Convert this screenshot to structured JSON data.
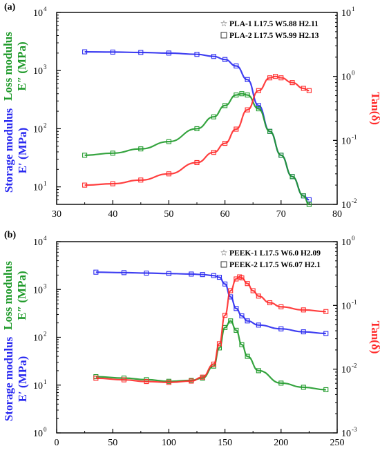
{
  "colors": {
    "storage": "#2a2af0",
    "loss": "#1f9a2a",
    "tan": "#ff2a2a",
    "axis": "#000000"
  },
  "shared_labels": {
    "loss_line1": "Loss modulus",
    "loss_line2": "E″ (MPa)",
    "storage_line1": "Storage modulus",
    "storage_line2": "E′ (MPa)",
    "tan_label": "Tan(δ)"
  },
  "chart_data": [
    {
      "panel": "(a)",
      "type": "line",
      "xlim": [
        30,
        80
      ],
      "x_ticks": [
        "30",
        "40",
        "50",
        "60",
        "70",
        "80"
      ],
      "y_left_scale": "log",
      "y_left_lim": [
        5,
        10000
      ],
      "y_left_ticks": [
        {
          "base": "10",
          "exp": "1"
        },
        {
          "base": "10",
          "exp": "2"
        },
        {
          "base": "10",
          "exp": "3"
        },
        {
          "base": "10",
          "exp": "4"
        }
      ],
      "y_right_scale": "log",
      "y_right_lim": [
        0.01,
        10
      ],
      "y_right_ticks": [
        {
          "base": "10",
          "exp": "-2"
        },
        {
          "base": "10",
          "exp": "-1"
        },
        {
          "base": "10",
          "exp": "0"
        },
        {
          "base": "10",
          "exp": "1"
        }
      ],
      "legend": [
        "PLA-1 L17.5 W5.88 H2.11",
        "PLA-2 L17.5 W5.99 H2.13"
      ],
      "legend_position": "top-right",
      "series": [
        {
          "quantity": "storage",
          "axis": "left",
          "x": [
            35,
            40,
            45,
            50,
            55,
            58,
            60,
            62,
            64,
            66,
            68,
            70,
            72,
            74,
            75
          ],
          "values": [
            2100,
            2080,
            2050,
            2000,
            1900,
            1750,
            1550,
            1200,
            700,
            250,
            90,
            35,
            15,
            7,
            6
          ]
        },
        {
          "quantity": "loss",
          "axis": "left",
          "x": [
            35,
            40,
            45,
            50,
            55,
            58,
            60,
            62,
            63,
            64,
            66,
            68,
            70,
            72,
            74,
            75
          ],
          "values": [
            35,
            38,
            45,
            60,
            100,
            160,
            250,
            380,
            400,
            380,
            220,
            90,
            35,
            15,
            7,
            5
          ]
        },
        {
          "quantity": "tan_delta",
          "axis": "right",
          "x": [
            35,
            40,
            45,
            50,
            55,
            58,
            60,
            62,
            64,
            66,
            68,
            69,
            70,
            72,
            74,
            75
          ],
          "values": [
            0.02,
            0.021,
            0.024,
            0.03,
            0.045,
            0.065,
            0.09,
            0.15,
            0.3,
            0.6,
            0.95,
            1.0,
            0.95,
            0.8,
            0.65,
            0.6
          ]
        }
      ]
    },
    {
      "panel": "(b)",
      "type": "line",
      "xlim": [
        0,
        250
      ],
      "x_ticks": [
        "0",
        "50",
        "100",
        "150",
        "200",
        "250"
      ],
      "y_left_scale": "log",
      "y_left_lim": [
        1,
        10000
      ],
      "y_left_ticks": [
        {
          "base": "10",
          "exp": "0"
        },
        {
          "base": "10",
          "exp": "1"
        },
        {
          "base": "10",
          "exp": "2"
        },
        {
          "base": "10",
          "exp": "3"
        },
        {
          "base": "10",
          "exp": "4"
        }
      ],
      "y_right_scale": "log",
      "y_right_lim": [
        0.001,
        1
      ],
      "y_right_ticks": [
        {
          "base": "10",
          "exp": "-3"
        },
        {
          "base": "10",
          "exp": "-2"
        },
        {
          "base": "10",
          "exp": "-1"
        },
        {
          "base": "10",
          "exp": "0"
        }
      ],
      "legend": [
        "PEEK-1 L17.5 W6.0 H2.09",
        "PEEK-2 L17.5 W6.07 H2.1"
      ],
      "legend_position": "top-right",
      "series": [
        {
          "quantity": "storage",
          "axis": "left",
          "x": [
            35,
            60,
            80,
            100,
            120,
            130,
            140,
            145,
            150,
            155,
            160,
            165,
            170,
            180,
            200,
            220,
            240
          ],
          "values": [
            2300,
            2250,
            2200,
            2150,
            2100,
            2050,
            1950,
            1800,
            1300,
            700,
            400,
            280,
            220,
            180,
            150,
            130,
            120
          ]
        },
        {
          "quantity": "loss",
          "axis": "left",
          "x": [
            35,
            60,
            80,
            100,
            120,
            130,
            140,
            145,
            150,
            155,
            160,
            165,
            170,
            180,
            200,
            220,
            240
          ],
          "values": [
            15,
            14,
            13,
            12,
            12.5,
            14,
            25,
            60,
            160,
            220,
            140,
            70,
            40,
            20,
            11,
            9,
            8
          ]
        },
        {
          "quantity": "tan_delta",
          "axis": "right",
          "x": [
            35,
            60,
            80,
            100,
            120,
            130,
            140,
            145,
            150,
            155,
            160,
            163,
            165,
            170,
            175,
            180,
            190,
            200,
            220,
            240
          ],
          "values": [
            0.0072,
            0.0068,
            0.0064,
            0.0062,
            0.0065,
            0.0075,
            0.012,
            0.025,
            0.07,
            0.17,
            0.26,
            0.28,
            0.27,
            0.22,
            0.17,
            0.14,
            0.11,
            0.095,
            0.085,
            0.08
          ]
        }
      ]
    }
  ]
}
